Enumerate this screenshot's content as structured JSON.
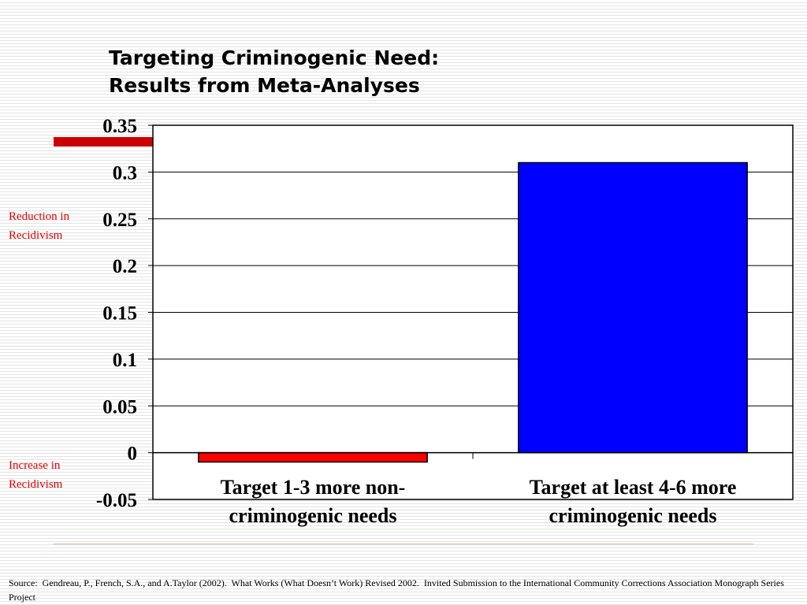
{
  "title": {
    "line1": "Targeting Criminogenic Need:",
    "line2": "Results from Meta-Analyses"
  },
  "side_labels": {
    "reduction": [
      "Reduction in",
      "Recidivism"
    ],
    "increase": [
      "Increase in",
      "Recidivism"
    ]
  },
  "colors": {
    "accent": "#cc0000",
    "side_label": "#e00000"
  },
  "chart_data": {
    "type": "bar",
    "title": "Targeting Criminogenic Need: Results from Meta-Analyses",
    "xlabel": "",
    "ylabel": "",
    "categories": [
      [
        "Target 1-3 more non-",
        "criminogenic needs"
      ],
      [
        "Target at least 4-6 more",
        "criminogenic needs"
      ]
    ],
    "values": [
      -0.01,
      0.31
    ],
    "bar_colors": [
      "#ff0000",
      "#0000ff"
    ],
    "ylim": [
      -0.05,
      0.35
    ],
    "yticks": [
      -0.05,
      0,
      0.05,
      0.1,
      0.15,
      0.2,
      0.25,
      0.3,
      0.35
    ],
    "ytick_labels": [
      "-0.05",
      "0",
      "0.05",
      "0.1",
      "0.15",
      "0.2",
      "0.25",
      "0.3",
      "0.35"
    ],
    "grid": true,
    "legend": "none"
  },
  "source": "Source:  Gendreau, P., French, S.A., and A.Taylor (2002).  What Works (What Doesn’t Work) Revised 2002.  Invited Submission to the International Community Corrections Association Monograph Series Project"
}
